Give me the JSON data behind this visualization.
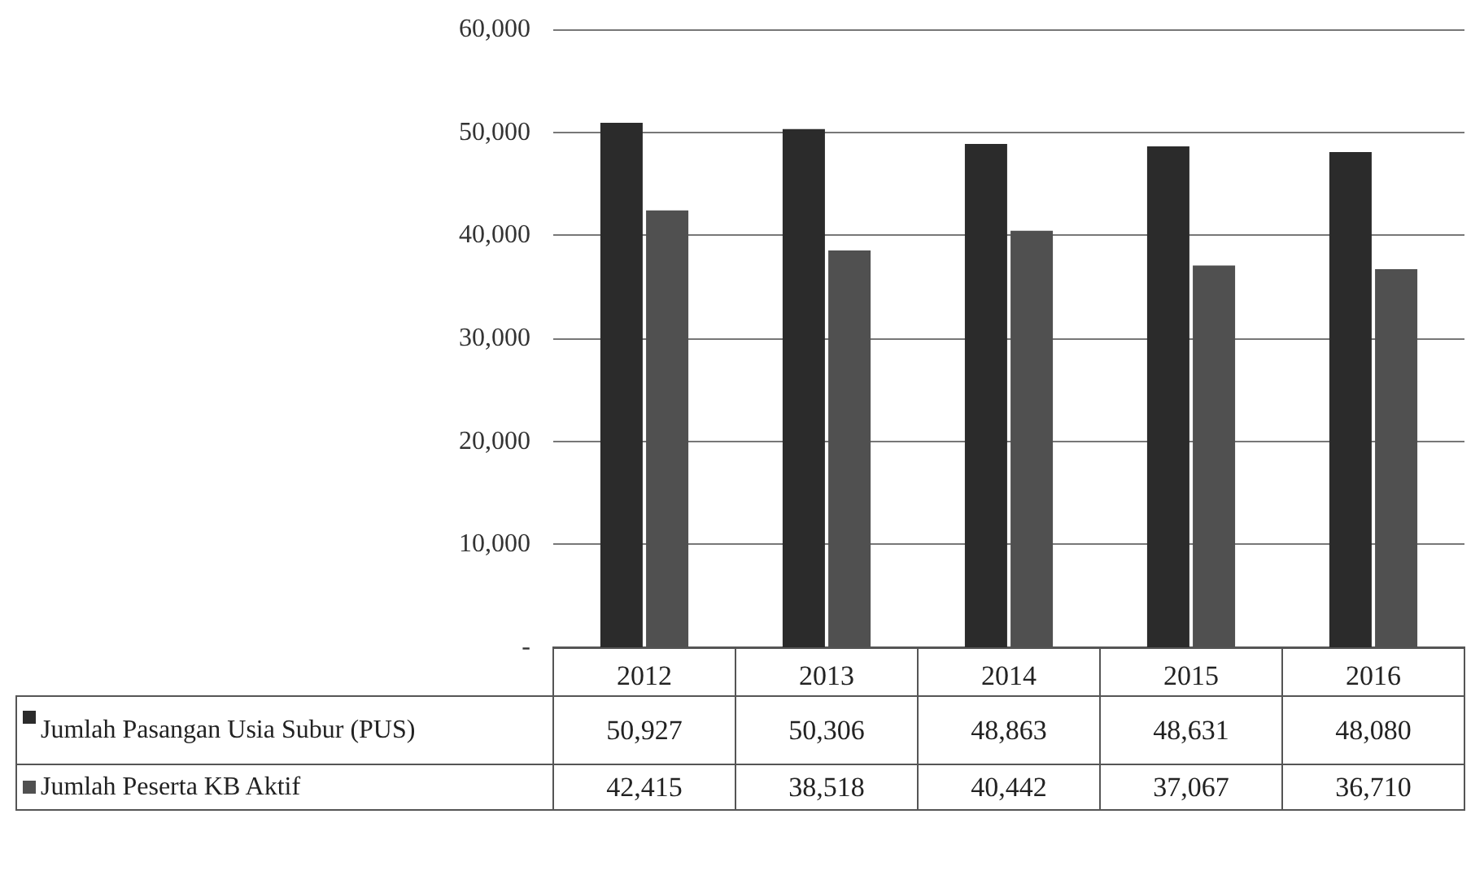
{
  "chart_data": {
    "type": "bar",
    "categories": [
      "2012",
      "2013",
      "2014",
      "2015",
      "2016"
    ],
    "series": [
      {
        "name": "Jumlah Pasangan Usia Subur (PUS)",
        "color": "#2b2b2b",
        "values": [
          50927,
          50306,
          48863,
          48631,
          48080
        ],
        "value_labels": [
          "50,927",
          "50,306",
          "48,863",
          "48,631",
          "48,080"
        ]
      },
      {
        "name": "Jumlah Peserta KB Aktif",
        "color": "#505050",
        "values": [
          42415,
          38518,
          40442,
          37067,
          36710
        ],
        "value_labels": [
          "42,415",
          "38,518",
          "40,442",
          "37,067",
          "36,710"
        ]
      }
    ],
    "ylim": [
      0,
      60000
    ],
    "yticks": [
      {
        "value": 0,
        "label": "-"
      },
      {
        "value": 10000,
        "label": "10,000"
      },
      {
        "value": 20000,
        "label": "20,000"
      },
      {
        "value": 30000,
        "label": "30,000"
      },
      {
        "value": 40000,
        "label": "40,000"
      },
      {
        "value": 50000,
        "label": "50,000"
      },
      {
        "value": 60000,
        "label": "60,000"
      }
    ],
    "grid": "y",
    "legend": "bottom left"
  }
}
